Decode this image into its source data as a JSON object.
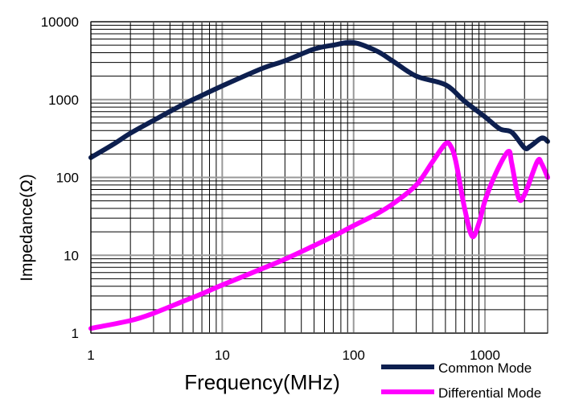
{
  "chart_data": {
    "type": "line",
    "title": "",
    "xlabel": "Frequency(MHz)",
    "ylabel": "Impedance(Ω)",
    "xscale": "log",
    "yscale": "log",
    "xlim": [
      1,
      3000
    ],
    "ylim": [
      1,
      10000
    ],
    "x_ticks": [
      1,
      10,
      100,
      1000
    ],
    "x_tick_labels": [
      "1",
      "10",
      "100",
      "1000"
    ],
    "y_ticks": [
      1,
      10,
      100,
      1000,
      10000
    ],
    "y_tick_labels": [
      "1",
      "10",
      "100",
      "1000",
      "10000"
    ],
    "grid": true,
    "legend_position": "bottom-right",
    "series": [
      {
        "name": "Common Mode",
        "color": "#0d1f4f",
        "points": [
          [
            1,
            180
          ],
          [
            1.5,
            270
          ],
          [
            2,
            370
          ],
          [
            3,
            540
          ],
          [
            5,
            860
          ],
          [
            7,
            1130
          ],
          [
            10,
            1500
          ],
          [
            20,
            2500
          ],
          [
            30,
            3150
          ],
          [
            50,
            4450
          ],
          [
            70,
            5000
          ],
          [
            100,
            5400
          ],
          [
            150,
            4200
          ],
          [
            200,
            3100
          ],
          [
            300,
            2000
          ],
          [
            500,
            1550
          ],
          [
            700,
            950
          ],
          [
            1000,
            600
          ],
          [
            1300,
            420
          ],
          [
            1600,
            380
          ],
          [
            2000,
            240
          ],
          [
            2200,
            250
          ],
          [
            2600,
            310
          ],
          [
            2800,
            320
          ],
          [
            3000,
            290
          ]
        ]
      },
      {
        "name": "Differential Mode",
        "color": "#ff00ff",
        "points": [
          [
            1,
            1.15
          ],
          [
            2,
            1.45
          ],
          [
            3,
            1.8
          ],
          [
            5,
            2.55
          ],
          [
            7,
            3.2
          ],
          [
            10,
            4.15
          ],
          [
            20,
            6.7
          ],
          [
            30,
            8.9
          ],
          [
            50,
            13.3
          ],
          [
            70,
            17.5
          ],
          [
            100,
            24
          ],
          [
            150,
            34
          ],
          [
            200,
            46
          ],
          [
            300,
            80
          ],
          [
            400,
            160
          ],
          [
            500,
            270
          ],
          [
            550,
            250
          ],
          [
            600,
            160
          ],
          [
            700,
            40
          ],
          [
            800,
            17.5
          ],
          [
            900,
            26
          ],
          [
            1000,
            50
          ],
          [
            1200,
            110
          ],
          [
            1500,
            215
          ],
          [
            1600,
            150
          ],
          [
            1800,
            55
          ],
          [
            2000,
            60
          ],
          [
            2500,
            160
          ],
          [
            2700,
            150
          ],
          [
            3000,
            100
          ]
        ]
      }
    ]
  }
}
